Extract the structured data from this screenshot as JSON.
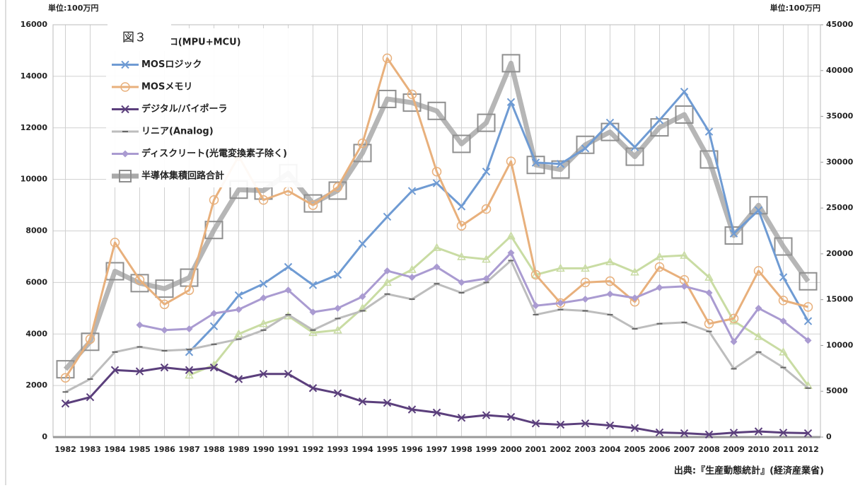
{
  "chart_data": {
    "type": "line",
    "figure_label": "図３",
    "unit_left": "単位:100万円",
    "unit_right": "単位:100万円",
    "source": "出典:『生産動態統計』(経済産業省)",
    "categories": [
      "1982",
      "1983",
      "1984",
      "1985",
      "1986",
      "1987",
      "1988",
      "1989",
      "1990",
      "1991",
      "1992",
      "1993",
      "1994",
      "1995",
      "1996",
      "1997",
      "1998",
      "1999",
      "2000",
      "2001",
      "2002",
      "2003",
      "2004",
      "2005",
      "2006",
      "2007",
      "2008",
      "2009",
      "2010",
      "2011",
      "2012"
    ],
    "ylim": [
      0,
      16000
    ],
    "yticks": [
      0,
      2000,
      4000,
      6000,
      8000,
      10000,
      12000,
      14000,
      16000
    ],
    "y2lim": [
      0,
      45000
    ],
    "y2ticks": [
      0,
      5000,
      10000,
      15000,
      20000,
      25000,
      30000,
      35000,
      40000,
      45000
    ],
    "grid": true,
    "legend": "top-left",
    "series": [
      {
        "name": "マイクロ(MPU+MCU)",
        "color": "#c9dca3",
        "marker": "triangle",
        "values": [
          null,
          null,
          null,
          null,
          null,
          2400,
          2800,
          4000,
          4400,
          4700,
          4050,
          4150,
          5000,
          6000,
          6500,
          7350,
          7000,
          6900,
          7800,
          6300,
          6550,
          6550,
          6800,
          6400,
          7000,
          7050,
          6200,
          4500,
          3900,
          3300,
          2000
        ]
      },
      {
        "name": "MOSロジック",
        "color": "#6f9bd3",
        "marker": "x",
        "values": [
          null,
          null,
          null,
          null,
          null,
          3300,
          4300,
          5500,
          5950,
          6600,
          5900,
          6300,
          7500,
          8550,
          9550,
          9850,
          8950,
          10300,
          13000,
          10650,
          10600,
          11200,
          12200,
          11250,
          12300,
          13400,
          11850,
          7900,
          8800,
          6200,
          4500
        ]
      },
      {
        "name": "MOSメモリ",
        "color": "#e8b07c",
        "marker": "circle",
        "values": [
          2300,
          3800,
          7550,
          6100,
          5150,
          5700,
          9200,
          10900,
          9200,
          9550,
          9000,
          9700,
          11400,
          14700,
          13300,
          10300,
          8200,
          8850,
          10700,
          6300,
          5200,
          6000,
          6050,
          5250,
          6600,
          6100,
          4400,
          4600,
          6450,
          5300,
          5050
        ]
      },
      {
        "name": "デジタル/バイポーラ",
        "color": "#5b3f7c",
        "marker": "x",
        "values": [
          1300,
          1550,
          2600,
          2550,
          2700,
          2600,
          2700,
          2250,
          2450,
          2450,
          1900,
          1700,
          1380,
          1330,
          1070,
          950,
          750,
          850,
          780,
          530,
          480,
          530,
          450,
          350,
          180,
          150,
          100,
          170,
          220,
          170,
          150
        ]
      },
      {
        "name": "リニア(Analog)",
        "color": "#bdbdbd",
        "marker": "dash",
        "values": [
          1750,
          2250,
          3300,
          3500,
          3350,
          3400,
          3600,
          3800,
          4150,
          4750,
          4150,
          4600,
          4900,
          5550,
          5350,
          5950,
          5600,
          6000,
          6850,
          4750,
          4950,
          4900,
          4750,
          4200,
          4400,
          4450,
          4100,
          2650,
          3300,
          2700,
          1900
        ]
      },
      {
        "name": "ディスクリート(光電変換素子除く)",
        "color": "#aa9bd1",
        "marker": "diamond",
        "values": [
          null,
          null,
          null,
          4350,
          4150,
          4200,
          4800,
          4950,
          5400,
          5700,
          4850,
          5000,
          5450,
          6450,
          6200,
          6600,
          6000,
          6150,
          7150,
          5100,
          5200,
          5350,
          5550,
          5400,
          5800,
          5850,
          5600,
          3700,
          5000,
          4500,
          3750
        ]
      },
      {
        "name": "半導体集積回路合計",
        "color": "#a9a9a9",
        "marker": "square",
        "axis": "y2",
        "values": [
          7400,
          10400,
          18100,
          16800,
          16200,
          17400,
          22600,
          27000,
          26900,
          28800,
          25500,
          26900,
          31000,
          36900,
          36500,
          35600,
          32000,
          34300,
          40800,
          29700,
          29200,
          31900,
          33300,
          30600,
          33800,
          35200,
          30300,
          22000,
          25300,
          20800,
          17000
        ]
      }
    ]
  }
}
